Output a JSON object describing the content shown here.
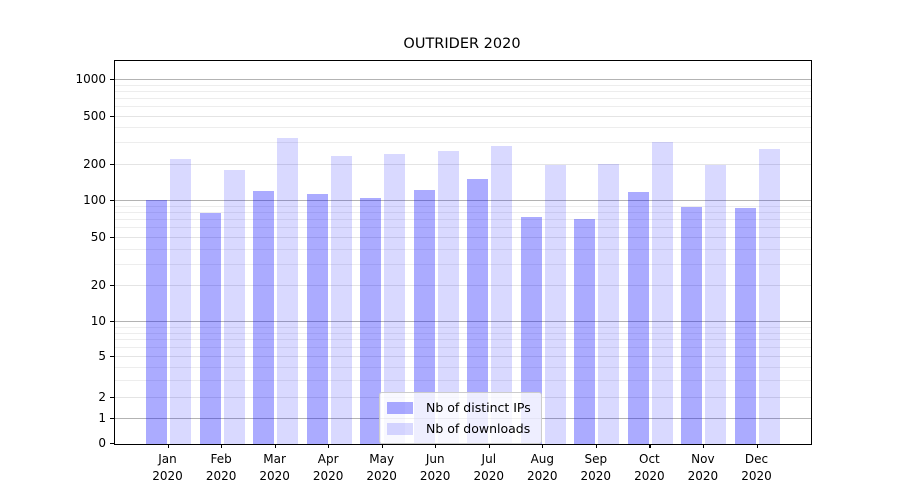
{
  "chart_data": {
    "type": "bar",
    "title": "OUTRIDER 2020",
    "categories": [
      "Jan 2020",
      "Feb 2020",
      "Mar 2020",
      "Apr 2020",
      "May 2020",
      "Jun 2020",
      "Jul 2020",
      "Aug 2020",
      "Sep 2020",
      "Oct 2020",
      "Nov 2020",
      "Dec 2020"
    ],
    "x_tick_line1": [
      "Jan",
      "Feb",
      "Mar",
      "Apr",
      "May",
      "Jun",
      "Jul",
      "Aug",
      "Sep",
      "Oct",
      "Nov",
      "Dec"
    ],
    "x_tick_line2": "2020",
    "series": [
      {
        "name": "Nb of distinct IPs",
        "color_hex": "#aaaaff",
        "css_color": "rgba(0,0,255,0.33)",
        "values": [
          102,
          80,
          122,
          116,
          107,
          123,
          152,
          75,
          72,
          120,
          90,
          88
        ]
      },
      {
        "name": "Nb of downloads",
        "color_hex": "#d9d9ff",
        "css_color": "rgba(0,0,255,0.15)",
        "values": [
          222,
          180,
          331,
          237,
          246,
          262,
          286,
          198,
          202,
          307,
          198,
          270
        ]
      }
    ],
    "yscale": "asinh",
    "ylim": [
      0,
      1400
    ],
    "yticks": [
      0,
      1,
      2,
      5,
      10,
      20,
      50,
      100,
      200,
      500,
      1000
    ],
    "grid": "horizontal",
    "legend": {
      "position": "lower center",
      "entries": [
        "Nb of distinct IPs",
        "Nb of downloads"
      ]
    },
    "colors": {
      "major_gridline": "#b3b3b3",
      "minor_gridline": "#ededed",
      "axis": "#000000",
      "background": "#ffffff"
    }
  }
}
